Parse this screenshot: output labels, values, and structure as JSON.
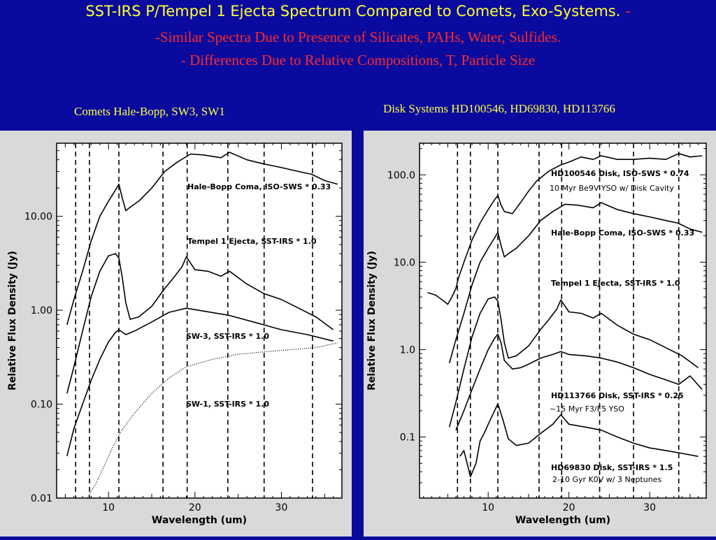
{
  "slide": {
    "title": "SST-IRS P/Tempel 1 Ejecta Spectrum Compared to Comets, Exo-Systems.",
    "title_dash": "-",
    "line2": "-Similar Spectra Due to Presence of Silicates, PAHs, Water, Sulfides.",
    "line3": "- Differences Due to Relative Compositions, T, Particle Size",
    "colors": {
      "background": "#0a0a9e",
      "title": "#ffff33",
      "subtitle": "#ff2a2a",
      "panel": "#d9d9d9"
    }
  },
  "chart_data": [
    {
      "type": "line",
      "caption": "Comets Hale-Bopp, SW3, SW1",
      "xlabel": "Wavelength (um)",
      "ylabel": "Relative Flux Density (Jy)",
      "xlim": [
        4,
        37
      ],
      "ylim": [
        0.01,
        60
      ],
      "yscale": "log",
      "xticks": [
        10,
        20,
        30
      ],
      "yticks": [
        0.01,
        0.1,
        1.0,
        10.0
      ],
      "ytick_labels": [
        "0.01",
        "0.10",
        "1.00",
        "10.00"
      ],
      "vlines": [
        6.2,
        7.8,
        11.2,
        16.3,
        19.1,
        23.8,
        28.0,
        33.6
      ],
      "series": [
        {
          "name": "Hale-Bopp Coma, ISO-SWS * 0.33",
          "style": "solid",
          "x": [
            5.2,
            6.0,
            7.0,
            8.0,
            9.0,
            10.0,
            10.8,
            11.2,
            11.6,
            12.0,
            12.5,
            13.5,
            15.0,
            16.5,
            18.0,
            19.5,
            21.0,
            23.0,
            24.0,
            26.0,
            28.0,
            30.0,
            32.0,
            33.5,
            35.0,
            36.5
          ],
          "y": [
            0.7,
            1.3,
            2.6,
            5.5,
            10.0,
            14.5,
            19.0,
            22.0,
            15.5,
            11.5,
            12.5,
            14.5,
            20.0,
            30.0,
            38.0,
            46.0,
            45.0,
            42.0,
            48.0,
            40.0,
            36.0,
            33.0,
            30.0,
            28.0,
            24.0,
            22.0
          ]
        },
        {
          "name": "Tempel 1 Ejecta, SST-IRS * 1.0",
          "style": "solid",
          "x": [
            5.2,
            6.0,
            7.0,
            8.0,
            9.0,
            10.0,
            10.8,
            11.2,
            11.6,
            12.0,
            12.5,
            13.5,
            15.0,
            16.5,
            17.5,
            18.5,
            19.0,
            20.0,
            21.5,
            23.0,
            24.0,
            26.0,
            28.0,
            30.0,
            32.0,
            34.0,
            36.0
          ],
          "y": [
            0.13,
            0.25,
            0.6,
            1.4,
            2.6,
            3.8,
            4.0,
            3.6,
            2.2,
            1.2,
            0.8,
            0.85,
            1.1,
            1.7,
            2.2,
            2.9,
            3.7,
            2.7,
            2.6,
            2.3,
            2.6,
            1.9,
            1.5,
            1.3,
            1.05,
            0.85,
            0.62
          ]
        },
        {
          "name": "SW-3, SST-IRS * 1.0",
          "style": "solid",
          "x": [
            5.2,
            6.0,
            7.0,
            8.0,
            9.0,
            10.0,
            10.8,
            11.2,
            12.0,
            13.0,
            15.0,
            17.0,
            19.0,
            21.0,
            24.0,
            27.0,
            30.0,
            33.0,
            36.0
          ],
          "y": [
            0.028,
            0.055,
            0.1,
            0.18,
            0.3,
            0.46,
            0.58,
            0.62,
            0.55,
            0.6,
            0.75,
            0.95,
            1.05,
            0.98,
            0.88,
            0.74,
            0.62,
            0.55,
            0.47
          ]
        },
        {
          "name": "SW-1, SST-IRS * 1.0",
          "style": "dotted",
          "x": [
            7.5,
            8.5,
            9.5,
            10.5,
            11.5,
            13.0,
            15.0,
            17.0,
            19.0,
            22.0,
            25.0,
            28.0,
            31.0,
            34.0,
            36.5
          ],
          "y": [
            0.01,
            0.014,
            0.022,
            0.035,
            0.052,
            0.08,
            0.13,
            0.19,
            0.25,
            0.3,
            0.34,
            0.36,
            0.38,
            0.4,
            0.45
          ]
        }
      ],
      "annotations": [
        "Hale-Bopp Coma, ISO-SWS * 0.33",
        "Tempel 1 Ejecta, SST-IRS * 1.0",
        "SW-3, SST-IRS * 1.0",
        "SW-1, SST-IRS * 1.0"
      ]
    },
    {
      "type": "line",
      "caption": "Disk Systems HD100546, HD69830, HD113766",
      "xlabel": "Wavelength (um)",
      "ylabel": "Relative Flux Density (Jy)",
      "xlim": [
        1.5,
        37
      ],
      "ylim": [
        0.02,
        230
      ],
      "yscale": "log",
      "xticks": [
        10,
        20,
        30
      ],
      "yticks": [
        0.1,
        1.0,
        10.0,
        100.0
      ],
      "ytick_labels": [
        "0.1",
        "1.0",
        "10.0",
        "100.0"
      ],
      "vlines": [
        6.2,
        7.8,
        11.2,
        16.3,
        19.1,
        23.8,
        28.0,
        33.6
      ],
      "series": [
        {
          "name": "HD100546 Disk, ISO-SWS * 0.74",
          "style": "solid",
          "x": [
            2.5,
            3.5,
            4.5,
            5.0,
            5.5,
            6.0,
            6.3,
            7.0,
            8.0,
            9.0,
            10.0,
            10.8,
            11.2,
            11.6,
            12.0,
            13.0,
            14.0,
            15.0,
            16.0,
            17.5,
            19.0,
            20.0,
            21.5,
            23.0,
            24.0,
            26.0,
            28.0,
            30.0,
            32.0,
            33.6,
            35.0,
            36.5
          ],
          "y": [
            4.5,
            4.2,
            3.6,
            3.3,
            4.0,
            5.0,
            6.5,
            10.0,
            18.0,
            28.0,
            40.0,
            52.0,
            58.0,
            45.0,
            38.0,
            36.0,
            48.0,
            65.0,
            85.0,
            110.0,
            130.0,
            140.0,
            160.0,
            150.0,
            165.0,
            150.0,
            150.0,
            155.0,
            150.0,
            175.0,
            160.0,
            165.0
          ]
        },
        {
          "name": "Hale-Bopp Coma, ISO-SWS * 0.33",
          "style": "solid",
          "x": [
            5.2,
            6.0,
            7.0,
            8.0,
            9.0,
            10.0,
            10.8,
            11.2,
            11.6,
            12.0,
            12.5,
            13.5,
            15.0,
            16.5,
            18.0,
            19.5,
            21.0,
            23.0,
            24.0,
            26.0,
            28.0,
            30.0,
            32.0,
            33.5,
            35.0,
            36.5
          ],
          "y": [
            0.7,
            1.3,
            2.6,
            5.5,
            10.0,
            14.5,
            19.0,
            22.0,
            15.5,
            11.5,
            12.5,
            14.5,
            20.0,
            30.0,
            38.0,
            46.0,
            45.0,
            42.0,
            48.0,
            40.0,
            36.0,
            33.0,
            30.0,
            28.0,
            24.0,
            22.0
          ]
        },
        {
          "name": "Tempel 1 Ejecta, SST-IRS * 1.0",
          "style": "solid",
          "x": [
            5.2,
            6.0,
            7.0,
            8.0,
            9.0,
            10.0,
            10.8,
            11.2,
            11.6,
            12.0,
            12.5,
            13.5,
            15.0,
            16.5,
            17.5,
            18.5,
            19.0,
            20.0,
            21.5,
            23.0,
            24.0,
            26.0,
            28.0,
            30.0,
            32.0,
            34.0,
            36.0
          ],
          "y": [
            0.13,
            0.25,
            0.6,
            1.4,
            2.6,
            3.8,
            4.0,
            3.6,
            2.2,
            1.2,
            0.8,
            0.85,
            1.1,
            1.7,
            2.2,
            2.9,
            3.7,
            2.7,
            2.6,
            2.3,
            2.6,
            1.9,
            1.5,
            1.3,
            1.05,
            0.85,
            0.62
          ]
        },
        {
          "name": "HD113766 Disk, SST-IRS * 0.25",
          "style": "solid",
          "x": [
            6.0,
            7.0,
            8.0,
            9.0,
            10.0,
            10.8,
            11.2,
            11.6,
            12.0,
            13.0,
            14.0,
            15.0,
            16.5,
            18.0,
            19.0,
            20.0,
            22.0,
            24.0,
            26.0,
            28.0,
            30.0,
            32.0,
            33.6,
            35.0,
            36.5
          ],
          "y": [
            0.12,
            0.2,
            0.35,
            0.6,
            1.0,
            1.35,
            1.5,
            1.2,
            0.75,
            0.6,
            0.62,
            0.68,
            0.8,
            0.88,
            0.95,
            0.88,
            0.85,
            0.8,
            0.72,
            0.62,
            0.52,
            0.45,
            0.4,
            0.5,
            0.35
          ]
        },
        {
          "name": "HD69830 Disk, SST-IRS * 1.5",
          "style": "solid",
          "x": [
            6.5,
            7.0,
            7.8,
            8.5,
            9.0,
            9.5,
            10.0,
            10.8,
            11.2,
            11.8,
            12.5,
            13.5,
            15.0,
            16.5,
            18.0,
            19.0,
            20.0,
            22.0,
            24.0,
            26.0,
            28.0,
            30.0,
            32.0,
            34.0,
            36.0
          ],
          "y": [
            0.06,
            0.07,
            0.035,
            0.05,
            0.09,
            0.11,
            0.14,
            0.2,
            0.24,
            0.16,
            0.095,
            0.08,
            0.085,
            0.11,
            0.14,
            0.18,
            0.14,
            0.13,
            0.12,
            0.1,
            0.085,
            0.075,
            0.07,
            0.065,
            0.06
          ]
        }
      ],
      "annotations": [
        "HD100546 Disk, ISO-SWS * 0.74",
        "10 Myr Be9V YSO  w/ Disk Cavity",
        "Hale-Bopp Coma, ISO-SWS * 0.33",
        "Tempel 1 Ejecta, SST-IRS * 1.0",
        "HD113766 Disk, SST-IRS * 0.25",
        "~15 Myr F3/F5 YSO",
        "HD69830 Disk, SST-IRS * 1.5",
        "2-10 Gyr K0V w/ 3 Neptunes"
      ]
    }
  ]
}
